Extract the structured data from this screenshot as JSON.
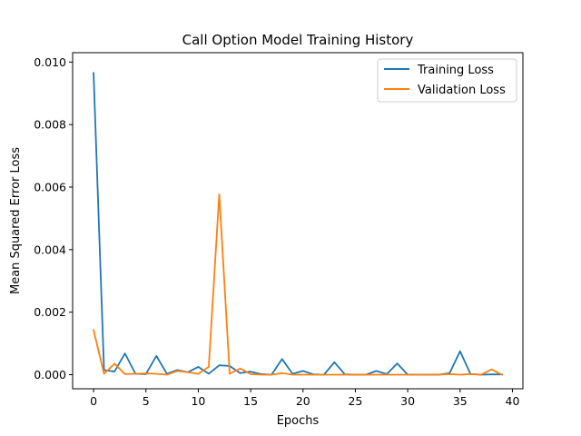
{
  "chart_data": {
    "type": "line",
    "title": "Call Option Model Training History",
    "xlabel": "Epochs",
    "ylabel": "Mean Squared Error Loss",
    "xlim": [
      -2,
      41
    ],
    "ylim": [
      -0.00045,
      0.0103
    ],
    "xticks": [
      0,
      5,
      10,
      15,
      20,
      25,
      30,
      35,
      40
    ],
    "yticks": [
      0.0,
      0.002,
      0.004,
      0.006,
      0.008,
      0.01
    ],
    "ytick_labels": [
      "0.000",
      "0.002",
      "0.004",
      "0.006",
      "0.008",
      "0.010"
    ],
    "xtick_labels": [
      "0",
      "5",
      "10",
      "15",
      "20",
      "25",
      "30",
      "35",
      "40"
    ],
    "grid": false,
    "legend_position": "top-right",
    "x": [
      0,
      1,
      2,
      3,
      4,
      5,
      6,
      7,
      8,
      9,
      10,
      11,
      12,
      13,
      14,
      15,
      16,
      17,
      18,
      19,
      20,
      21,
      22,
      23,
      24,
      25,
      26,
      27,
      28,
      29,
      30,
      31,
      32,
      33,
      34,
      35,
      36,
      37,
      38,
      39
    ],
    "series": [
      {
        "name": "Training Loss",
        "color": "#1f77b4",
        "values": [
          0.00965,
          0.00015,
          0.0001,
          0.00068,
          3e-05,
          2e-05,
          0.0006,
          3e-05,
          0.00015,
          8e-05,
          0.00025,
          3e-05,
          0.0003,
          0.00028,
          5e-05,
          0.0001,
          2e-05,
          0.0,
          0.0005,
          3e-05,
          0.00012,
          1e-05,
          0.0,
          0.0004,
          1e-05,
          0.0,
          0.0,
          0.00012,
          2e-05,
          0.00036,
          0.0,
          0.0,
          0.0,
          0.0,
          5e-05,
          0.00075,
          2e-05,
          0.0,
          1e-05,
          1e-05
        ]
      },
      {
        "name": "Validation Loss",
        "color": "#ff7f0e",
        "values": [
          0.00143,
          3e-05,
          0.00035,
          2e-05,
          3e-05,
          4e-05,
          3e-05,
          0.0,
          0.00012,
          8e-05,
          3e-05,
          0.00025,
          0.00577,
          3e-05,
          0.0002,
          2e-05,
          0.0,
          0.0,
          5e-05,
          0.0,
          0.0,
          0.0,
          0.0,
          0.0,
          0.0,
          0.0,
          0.0,
          0.0,
          0.0,
          0.0,
          0.0,
          0.0,
          0.0,
          0.0,
          2e-05,
          0.0,
          2e-05,
          0.0,
          0.00017,
          0.0
        ]
      }
    ]
  }
}
